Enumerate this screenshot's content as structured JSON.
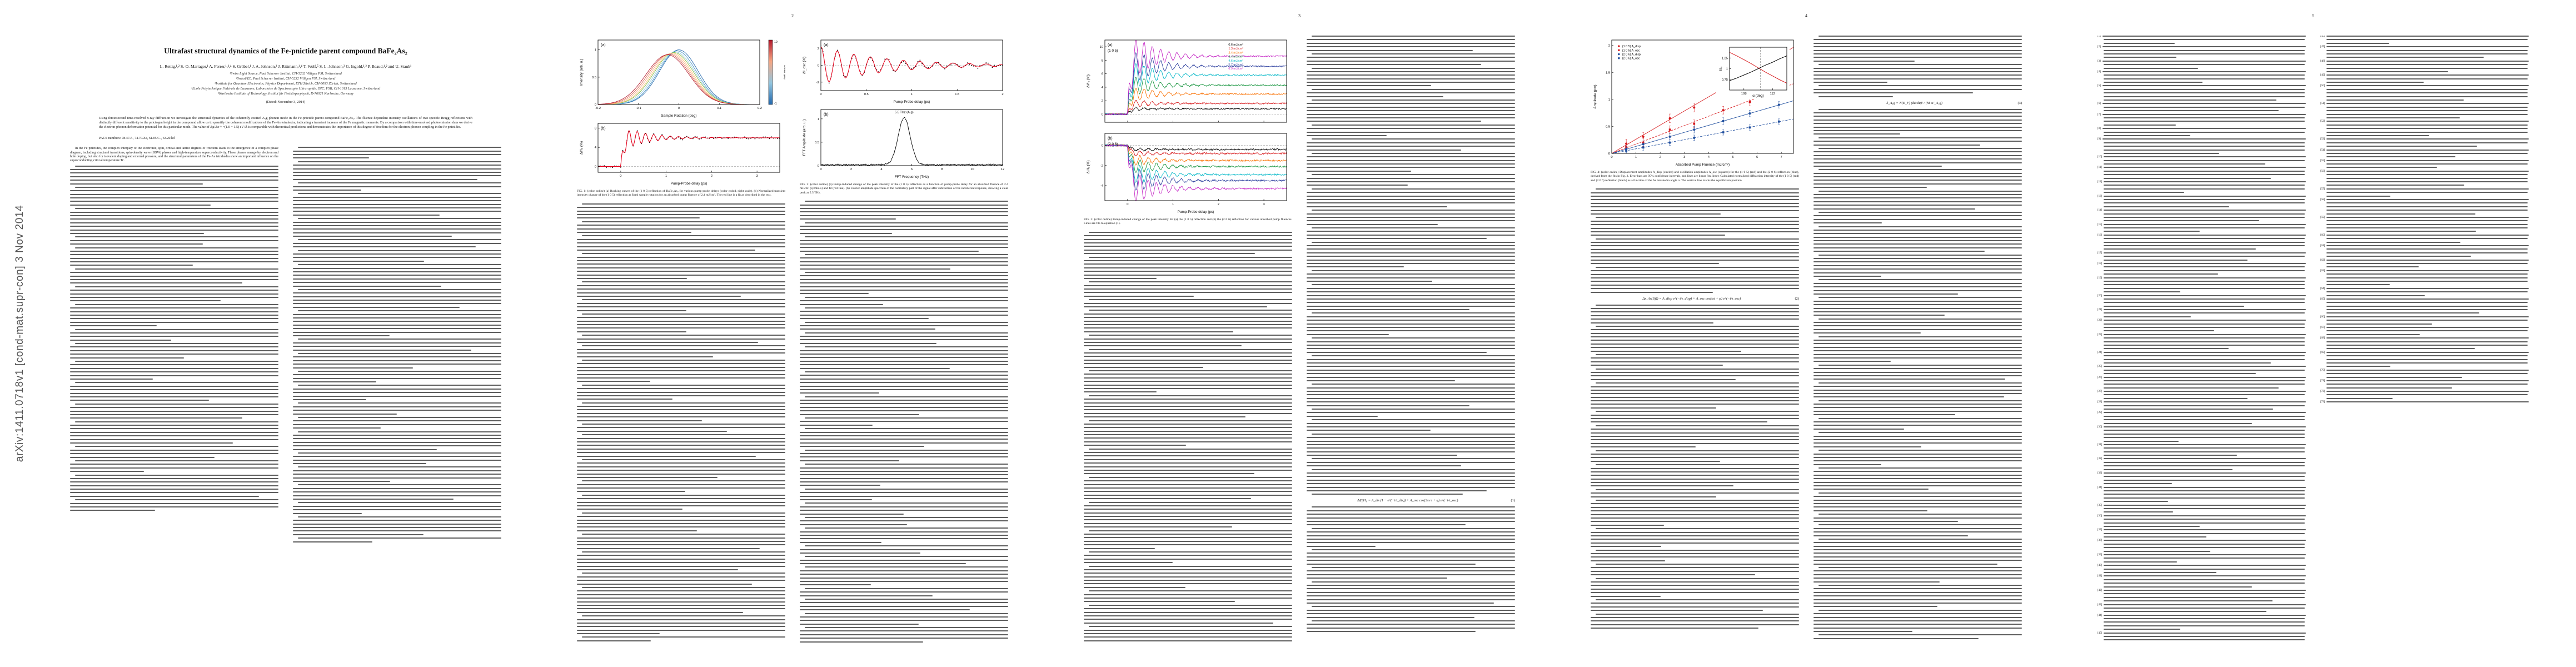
{
  "arxiv_banner": "arXiv:1411.0718v1 [cond-mat.supr-con] 3 Nov 2014",
  "page_numbers": [
    "2",
    "3",
    "4",
    "5"
  ],
  "front_matter": {
    "title": "Ultrafast structural dynamics of the Fe-pnictide parent compound BaFe₂As₂",
    "authors": "L. Rettig,¹,² S.-O. Mariager,¹ A. Ferrer,¹,³,⁴ S. Grübel,¹ J. A. Johnson,³ J. Rittmann,¹,⁴ T. Wolf,⁵ S. L. Johnson,³ G. Ingold,¹,² P. Beaud,¹,² and U. Staub¹",
    "affiliations": [
      "¹Swiss Light Source, Paul Scherrer Institut, CH-5232 Villigen PSI, Switzerland",
      "²SwissFEL, Paul Scherrer Institut, CH-5232 Villigen PSI, Switzerland",
      "³Institute for Quantum Electronics, Physics Department, ETH Zürich, CH-8093 Zürich, Switzerland",
      "⁴Ecole Polytechnique Fédérale de Lausanne, Laboratoire de Spectroscopie Ultrarapide, ISIC, FSB, CH-1015 Lausanne, Switzerland",
      "⁵Karlsruhe Institute of Technology, Institut für Festkörperphysik, D-76021 Karlsruhe, Germany"
    ],
    "dated": "(Dated: November 3, 2014)",
    "abstract": "Using femtosecond time-resolved x-ray diffraction we investigate the structural dynamics of the coherently excited A₁g phonon mode in the Fe-pnictide parent compound BaFe₂As₂. The fluence dependent intensity oscillations of two specific Bragg reflections with distinctly different sensitivity to the pnictogen height in the compound allow us to quantify the coherent modifications of the Fe-As tetrahedra, indicating a transient increase of the Fe magnetic moments. By a comparison with time-resolved photoemission data we derive the electron-phonon deformation potential for this particular mode. The value of Δμ/Δz ≈ −(1.0 − 1.5) eV/Å is comparable with theoretical predictions and demonstrates the importance of this degree of freedom for the electron-phonon coupling in the Fe pnictides.",
    "pacs": "PACS numbers: 78.47.J-, 74.70.Xa, 61.05.C-, 63.20.kd"
  },
  "body": {
    "intro": "In the Fe pnictides, the complex interplay of the electronic, spin, orbital and lattice degrees of freedom leads to the emergence of a complex phase diagram, including structural transitions, spin-density wave (SDW) phases and high-temperature superconductivity. These phases emerge by electron and hole doping, but also for isovalent doping and external pressure, and the structural parameters of the Fe-As tetrahedra show an important influence on the superconducting critical temperature Tc."
  },
  "figures": {
    "fig1": {
      "caption": "FIG. 1:  (color online) (a) Rocking curves of the (1 0 5) reflection of BaFe₂As₂ for various pump-probe delays (color coded, right scale). (b) Normalized transient intensity change of the (1 0 5) reflection at fixed sample rotation for an absorbed pump fluence of 2.4 mJ/cm². The red line is a fit as described in the text."
    },
    "fig2": {
      "caption": "FIG. 2:  (color online) (a) Pump-induced change of the peak intensity of the (1 0 5) reflection as a function of pump-probe delay for an absorbed fluence of 2.4 mJ/cm² (symbols) and fit (red line). (b) Fourier amplitude spectrum of the oscillatory part of the signal after subtraction of the incoherent response, showing a clear peak at 5.5 THz."
    },
    "fig3": {
      "caption": "FIG. 3:  (color online) Pump-induced change of the peak intensity for (a) the (1 0 5) reflection and (b) the (2 0 6) reflection for various absorbed pump fluences. Lines are fits to equation (1)."
    },
    "fig4": {
      "caption": "FIG. 4:  (color online) Displacement amplitudes A_disp (circles) and oscillation amplitudes A_osc (squares) for the (1 0 5) (red) and the (2 0 6) reflection (blue), derived from the fits in Fig. 3. Error bars are 95% confidence intervals, and lines are linear fits. Inset: Calculated normalized diffraction intensity of the (1 0 5) (red) and (2 0 6) reflection (black) as a function of the As tetrahedra angle α. The vertical line marks the equilibrium position."
    }
  },
  "equations": {
    "eq1": {
      "body": "ΔI(t)/I₀ = A_dis (1 − e^(−t/τ_dis)) + A_osc cos(2πν t + φ) e^(−t/τ_osc)",
      "number": "(1)"
    },
    "eq2": {
      "body": "Δz_As(I(t)) = A_disp e^(−t/τ_disp) + A_osc cos(ωt + φ) e^(−t/τ_osc)",
      "number": "(2)"
    },
    "eq3": {
      "body": "λ_A₁g = N(E_F) (dE/du)² / (M ω²_A₁g)",
      "number": "(3)"
    }
  },
  "references": {
    "first_number": 1,
    "note": "two-column reference list"
  },
  "chart_data": [
    {
      "id": "fig1a",
      "type": "line",
      "tag": "(a)",
      "xlabel": "Sample Rotation (deg)",
      "ylabel": "Intensity (arb. u.)",
      "xlim": [
        -0.2,
        0.2
      ],
      "ylim": [
        0,
        1.18
      ],
      "xticks": [
        -0.2,
        -0.1,
        0,
        0.1,
        0.2
      ],
      "yticks": [
        0,
        0.5,
        1
      ],
      "margins": {
        "l": 38,
        "r": 46,
        "t": 8,
        "b": 26
      },
      "colorbar": {
        "label": "Delay (ps)",
        "top": "10",
        "bottom": "-1",
        "colors": [
          "#b2182b",
          "#f4a582",
          "#92c5de",
          "#2166ac"
        ]
      },
      "series": [
        {
          "model": "gauss",
          "color": "#2166ac",
          "center": 0.0,
          "sigma": 0.048,
          "amp": 1.0
        },
        {
          "model": "gauss",
          "color": "#4393c3",
          "center": -0.004,
          "sigma": 0.048,
          "amp": 0.98
        },
        {
          "model": "gauss",
          "color": "#92c5de",
          "center": -0.008,
          "sigma": 0.049,
          "amp": 0.96
        },
        {
          "model": "gauss",
          "color": "#7fbc41",
          "center": -0.012,
          "sigma": 0.05,
          "amp": 0.95
        },
        {
          "model": "gauss",
          "color": "#fdbf6f",
          "center": -0.016,
          "sigma": 0.05,
          "amp": 0.94
        },
        {
          "model": "gauss",
          "color": "#f4a582",
          "center": -0.02,
          "sigma": 0.051,
          "amp": 0.93
        },
        {
          "model": "gauss",
          "color": "#d6604d",
          "center": -0.024,
          "sigma": 0.052,
          "amp": 0.92
        },
        {
          "model": "gauss",
          "color": "#b2182b",
          "center": -0.028,
          "sigma": 0.053,
          "amp": 0.91
        }
      ]
    },
    {
      "id": "fig1b",
      "type": "line",
      "tag": "(b)",
      "xlabel": "Pump-Probe delay (ps)",
      "ylabel": "ΔI/I₀ (%)",
      "xlim": [
        -0.5,
        3.5
      ],
      "ylim": [
        -1.2,
        9
      ],
      "xticks": [
        0,
        1,
        2,
        3
      ],
      "yticks": [
        0,
        4,
        8
      ],
      "hlines": [
        0
      ],
      "series": [
        {
          "model": "relax",
          "color": "#000000",
          "A": 6,
          "Aosc": 2.6,
          "f": 5.5,
          "tauosc": 0.55,
          "noise": 0.22,
          "markers": true
        },
        {
          "model": "relax",
          "color": "#e4001b",
          "A": 6,
          "Aosc": 2.6,
          "f": 5.5,
          "tauosc": 0.55,
          "width": 1.1
        }
      ]
    },
    {
      "id": "fig2a",
      "type": "line",
      "tag": "(a)",
      "xlabel": "Pump-Probe delay (ps)",
      "ylabel": "ΔI_osc (%)",
      "xlim": [
        0,
        2
      ],
      "ylim": [
        -3,
        3
      ],
      "xticks": [
        0,
        0.5,
        1,
        1.5,
        2
      ],
      "yticks": [
        -2,
        0,
        2
      ],
      "hlines": [
        0
      ],
      "series": [
        {
          "model": "dcos",
          "color": "#000000",
          "A": 2.2,
          "f": 5.5,
          "tau": 0.7,
          "noise": 0.18,
          "markers": true
        },
        {
          "model": "dcos",
          "color": "#e4001b",
          "A": 2.2,
          "f": 5.5,
          "tau": 0.7,
          "width": 1.1
        }
      ]
    },
    {
      "id": "fig2b",
      "type": "line",
      "tag": "(b)",
      "xlabel": "FFT Frequency (THz)",
      "ylabel": "FFT Amplitude (arb. u.)",
      "xlim": [
        0,
        12
      ],
      "ylim": [
        0,
        1.2
      ],
      "xticks": [
        0,
        2,
        4,
        6,
        8,
        10,
        12
      ],
      "yticks": [
        0,
        0.5,
        1
      ],
      "annotations": [
        {
          "x": 5.5,
          "y": 1.12,
          "text": "5.5 THz (A₁g)"
        }
      ],
      "series": [
        {
          "model": "gauss",
          "color": "#000000",
          "center": 5.5,
          "sigma": 0.4,
          "amp": 1.0,
          "base": 0.02,
          "noise": 0.015
        }
      ]
    },
    {
      "id": "fig3a",
      "type": "line",
      "tag": "(a)",
      "inner": "(1 0 5)",
      "ylabel": "ΔI/I₀ (%)",
      "noxlab": true,
      "xlim": [
        -0.5,
        3.5
      ],
      "ylim": [
        -1.2,
        11
      ],
      "xticks": [
        0,
        1,
        2,
        3
      ],
      "yticks": [
        0,
        2,
        4,
        6,
        8,
        10
      ],
      "hlines": [
        0
      ],
      "margins": {
        "l": 38,
        "r": 10,
        "t": 8,
        "b": 12
      },
      "legend": {
        "x": 0.68,
        "y": 0.02,
        "items": [
          {
            "label": "0.6 mJ/cm²",
            "color": "#000000"
          },
          {
            "label": "1.3 mJ/cm²",
            "color": "#d7191c"
          },
          {
            "label": "2.4 mJ/cm²",
            "color": "#f97306"
          },
          {
            "label": "3.4 mJ/cm²",
            "color": "#1a9641"
          },
          {
            "label": "4.6 mJ/cm²",
            "color": "#00b7c7"
          },
          {
            "label": "5.7 mJ/cm²",
            "color": "#2c3e9e"
          },
          {
            "label": "6.9 mJ/cm²",
            "color": "#c629c6"
          }
        ]
      },
      "series": [
        {
          "model": "relax",
          "color": "#000000",
          "A": 0.8,
          "Aosc": 0.4,
          "f": 5.5,
          "tauosc": 0.5,
          "noise": 0.1
        },
        {
          "model": "relax",
          "color": "#d7191c",
          "A": 1.6,
          "Aosc": 0.8,
          "f": 5.5,
          "tauosc": 0.5,
          "noise": 0.1
        },
        {
          "model": "relax",
          "color": "#f97306",
          "A": 3.0,
          "Aosc": 1.5,
          "f": 5.5,
          "tauosc": 0.5,
          "noise": 0.1
        },
        {
          "model": "relax",
          "color": "#1a9641",
          "A": 4.3,
          "Aosc": 2.1,
          "f": 5.5,
          "tauosc": 0.5,
          "noise": 0.1
        },
        {
          "model": "relax",
          "color": "#00b7c7",
          "A": 5.8,
          "Aosc": 2.9,
          "f": 5.5,
          "tauosc": 0.5,
          "noise": 0.1
        },
        {
          "model": "relax",
          "color": "#2c3e9e",
          "A": 7.1,
          "Aosc": 3.5,
          "f": 5.5,
          "tauosc": 0.5,
          "noise": 0.1
        },
        {
          "model": "relax",
          "color": "#c629c6",
          "A": 8.6,
          "Aosc": 4.3,
          "f": 5.5,
          "tauosc": 0.5,
          "noise": 0.1
        }
      ]
    },
    {
      "id": "fig3b",
      "type": "line",
      "tag": "(b)",
      "inner": "(2 0 6)",
      "xlabel": "Pump-Probe delay (ps)",
      "ylabel": "ΔI/I₀ (%)",
      "xlim": [
        -0.5,
        3.5
      ],
      "ylim": [
        -5.5,
        1.2
      ],
      "xticks": [
        0,
        1,
        2,
        3
      ],
      "yticks": [
        -4,
        -2,
        0
      ],
      "hlines": [
        0
      ],
      "series": [
        {
          "model": "relax",
          "color": "#000000",
          "A": -0.4,
          "Aosc": -0.2,
          "f": 5.5,
          "tauosc": 0.5,
          "noise": 0.08
        },
        {
          "model": "relax",
          "color": "#d7191c",
          "A": -0.8,
          "Aosc": -0.4,
          "f": 5.5,
          "tauosc": 0.5,
          "noise": 0.08
        },
        {
          "model": "relax",
          "color": "#f97306",
          "A": -1.5,
          "Aosc": -0.75,
          "f": 5.5,
          "tauosc": 0.5,
          "noise": 0.08
        },
        {
          "model": "relax",
          "color": "#1a9641",
          "A": -2.1,
          "Aosc": -1.05,
          "f": 5.5,
          "tauosc": 0.5,
          "noise": 0.08
        },
        {
          "model": "relax",
          "color": "#00b7c7",
          "A": -2.9,
          "Aosc": -1.45,
          "f": 5.5,
          "tauosc": 0.5,
          "noise": 0.08
        },
        {
          "model": "relax",
          "color": "#2c3e9e",
          "A": -3.5,
          "Aosc": -1.75,
          "f": 5.5,
          "tauosc": 0.5,
          "noise": 0.08
        },
        {
          "model": "relax",
          "color": "#c629c6",
          "A": -4.3,
          "Aosc": -2.15,
          "f": 5.5,
          "tauosc": 0.5,
          "noise": 0.08
        }
      ]
    },
    {
      "id": "fig4",
      "type": "scatter",
      "xlabel": "Absorbed Pump Fluence (mJ/cm²)",
      "ylabel": "Amplitude (pm)",
      "xlim": [
        0,
        7.5
      ],
      "ylim": [
        0,
        2.1
      ],
      "xticks": [
        0,
        1,
        2,
        3,
        4,
        5,
        6,
        7
      ],
      "yticks": [
        0,
        0.5,
        1,
        1.5,
        2
      ],
      "legend": {
        "x": 0.03,
        "y": 0.03,
        "items": [
          {
            "label": "(1 0 5)  A_disp",
            "color": "#d7191c",
            "marker": "circle"
          },
          {
            "label": "(1 0 5)  A_osc",
            "color": "#d7191c",
            "marker": "square"
          },
          {
            "label": "(2 0 6)  A_disp",
            "color": "#1f4e9e",
            "marker": "circle"
          },
          {
            "label": "(2 0 6)  A_osc",
            "color": "#1f4e9e",
            "marker": "square"
          }
        ]
      },
      "series": [
        {
          "model": "fit",
          "color": "#d7191c",
          "slope": 0.262
        },
        {
          "model": "fit",
          "color": "#d7191c",
          "slope": 0.172,
          "dash": true
        },
        {
          "model": "fit",
          "color": "#1f4e9e",
          "slope": 0.13
        },
        {
          "model": "fit",
          "color": "#1f4e9e",
          "slope": 0.085,
          "dash": true
        },
        {
          "model": "pts",
          "marker": "circle",
          "color": "#d7191c",
          "err": 0.08,
          "x": [
            0.6,
            1.3,
            2.4,
            3.4,
            4.6,
            5.7,
            6.9
          ],
          "y": [
            0.18,
            0.31,
            0.65,
            0.85,
            1.24,
            1.44,
            1.82
          ]
        },
        {
          "model": "pts",
          "marker": "square",
          "color": "#d7191c",
          "err": 0.07,
          "x": [
            0.6,
            1.3,
            2.4,
            3.4,
            4.6,
            5.7,
            6.9
          ],
          "y": [
            0.12,
            0.2,
            0.44,
            0.55,
            0.8,
            0.95,
            1.2
          ]
        },
        {
          "model": "pts",
          "marker": "circle",
          "color": "#1f4e9e",
          "err": 0.06,
          "x": [
            0.6,
            1.3,
            2.4,
            3.4,
            4.6,
            5.7,
            6.9
          ],
          "y": [
            0.08,
            0.17,
            0.31,
            0.44,
            0.6,
            0.74,
            0.9
          ]
        },
        {
          "model": "pts",
          "marker": "square",
          "color": "#1f4e9e",
          "err": 0.05,
          "x": [
            0.6,
            1.3,
            2.4,
            3.4,
            4.6,
            5.7,
            6.9
          ],
          "y": [
            0.05,
            0.11,
            0.2,
            0.29,
            0.39,
            0.48,
            0.59
          ]
        }
      ]
    },
    {
      "id": "fig4inset",
      "type": "line",
      "xlabel": "α (deg)",
      "ylabel": "I/I₀",
      "xlim": [
        106,
        114
      ],
      "ylim": [
        0.5,
        1.5
      ],
      "xticks": [
        108,
        112
      ],
      "yticks": [
        0.75,
        1,
        1.25
      ],
      "margins": {
        "l": 24,
        "r": 5,
        "t": 5,
        "b": 16
      },
      "vlines": [
        110.3
      ],
      "series": [
        {
          "model": "pts",
          "line": true,
          "color": "#d7191c",
          "x": [
            106,
            107,
            108,
            109,
            110,
            111,
            112,
            113,
            114
          ],
          "y": [
            1.38,
            1.3,
            1.21,
            1.12,
            1.02,
            0.92,
            0.83,
            0.74,
            0.66
          ]
        },
        {
          "model": "pts",
          "line": true,
          "color": "#000000",
          "x": [
            106,
            107,
            108,
            109,
            110,
            111,
            112,
            113,
            114
          ],
          "y": [
            0.72,
            0.78,
            0.85,
            0.92,
            1.0,
            1.08,
            1.15,
            1.23,
            1.3
          ]
        }
      ]
    }
  ]
}
